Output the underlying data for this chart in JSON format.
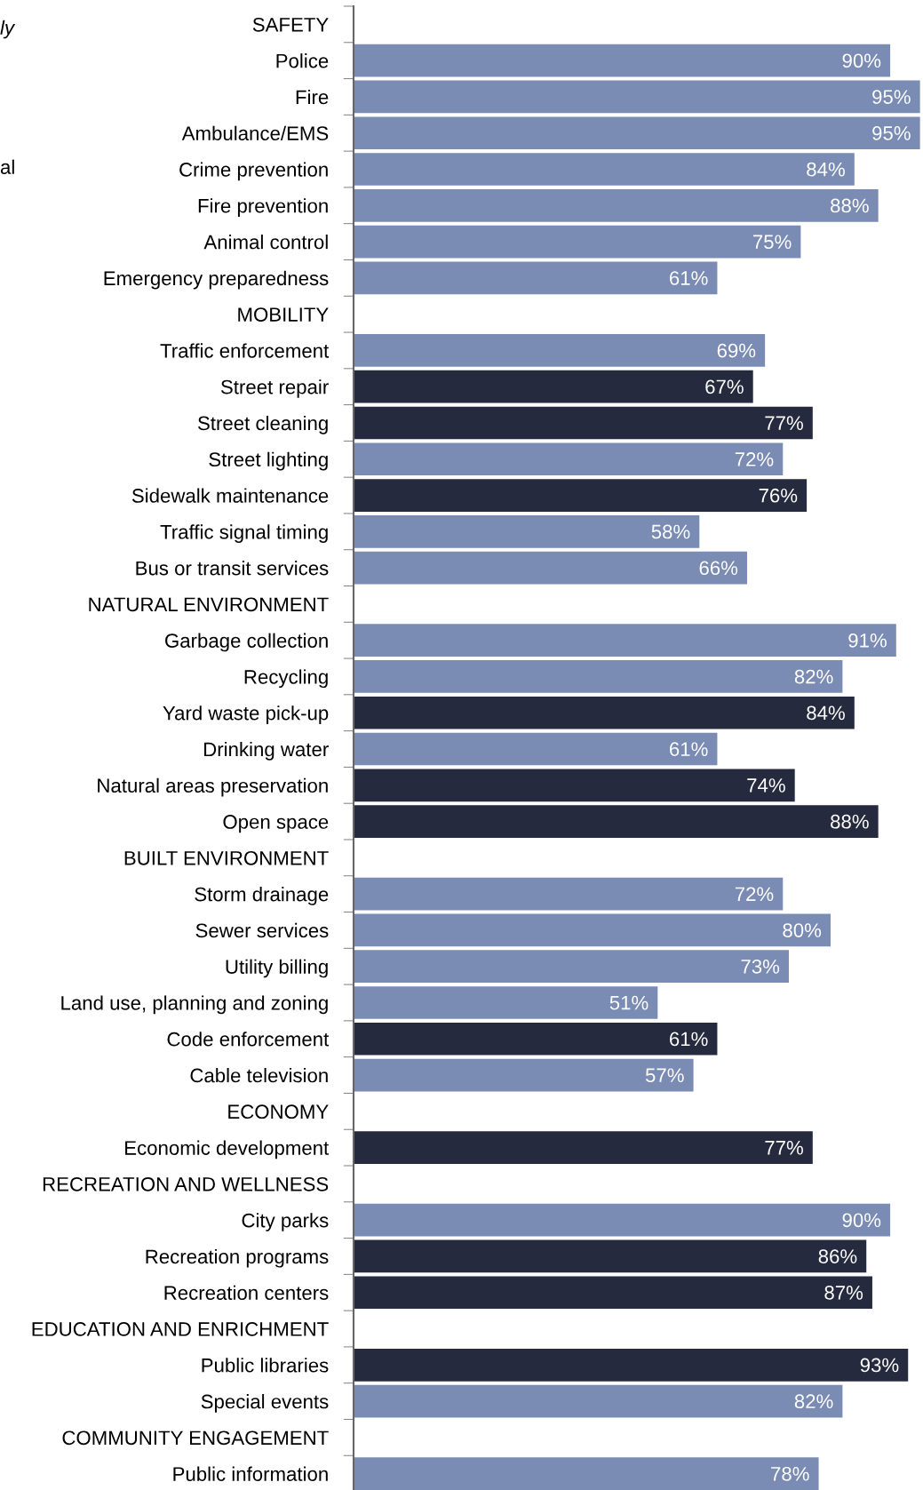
{
  "chart_data": {
    "type": "bar",
    "orientation": "horizontal",
    "categories": [
      "SAFETY",
      "Police",
      "Fire",
      "Ambulance/EMS",
      "Crime prevention",
      "Fire prevention",
      "Animal control",
      "Emergency preparedness",
      "MOBILITY",
      "Traffic enforcement",
      "Street repair",
      "Street cleaning",
      "Street lighting",
      "Sidewalk maintenance",
      "Traffic signal timing",
      "Bus or transit services",
      "NATURAL ENVIRONMENT",
      "Garbage collection",
      "Recycling",
      "Yard waste pick-up",
      "Drinking water",
      "Natural areas preservation",
      "Open space",
      "BUILT ENVIRONMENT",
      "Storm drainage",
      "Sewer services",
      "Utility billing",
      "Land use, planning and zoning",
      "Code enforcement",
      "Cable television",
      "ECONOMY",
      "Economic development",
      "RECREATION AND WELLNESS",
      "City parks",
      "Recreation programs",
      "Recreation centers",
      "EDUCATION AND ENRICHMENT",
      "Public libraries",
      "Special events",
      "COMMUNITY ENGAGEMENT",
      "Public information"
    ],
    "values": [
      null,
      90,
      95,
      95,
      84,
      88,
      75,
      61,
      null,
      69,
      67,
      77,
      72,
      76,
      58,
      66,
      null,
      91,
      82,
      84,
      61,
      74,
      88,
      null,
      72,
      80,
      73,
      51,
      61,
      57,
      null,
      77,
      null,
      90,
      86,
      87,
      null,
      93,
      82,
      null,
      78
    ],
    "colors": [
      null,
      "#7a8bb4",
      "#7a8bb4",
      "#7a8bb4",
      "#7a8bb4",
      "#7a8bb4",
      "#7a8bb4",
      "#7a8bb4",
      null,
      "#7a8bb4",
      "#252a3e",
      "#252a3e",
      "#7a8bb4",
      "#252a3e",
      "#7a8bb4",
      "#7a8bb4",
      null,
      "#7a8bb4",
      "#7a8bb4",
      "#252a3e",
      "#7a8bb4",
      "#252a3e",
      "#252a3e",
      null,
      "#7a8bb4",
      "#7a8bb4",
      "#7a8bb4",
      "#7a8bb4",
      "#252a3e",
      "#7a8bb4",
      null,
      "#252a3e",
      null,
      "#7a8bb4",
      "#252a3e",
      "#252a3e",
      null,
      "#252a3e",
      "#7a8bb4",
      null,
      "#7a8bb4"
    ],
    "value_labels": [
      null,
      "90%",
      "95%",
      "95%",
      "84%",
      "88%",
      "75%",
      "61%",
      null,
      "69%",
      "67%",
      "77%",
      "72%",
      "76%",
      "58%",
      "66%",
      null,
      "91%",
      "82%",
      "84%",
      "61%",
      "74%",
      "88%",
      null,
      "72%",
      "80%",
      "73%",
      "51%",
      "61%",
      "57%",
      null,
      "77%",
      null,
      "90%",
      "86%",
      "87%",
      null,
      "93%",
      "82%",
      null,
      "78%"
    ],
    "xlim": [
      0,
      95.5
    ],
    "tick_labels": "y",
    "grid": false,
    "annotations": [
      "ly",
      "al"
    ]
  }
}
